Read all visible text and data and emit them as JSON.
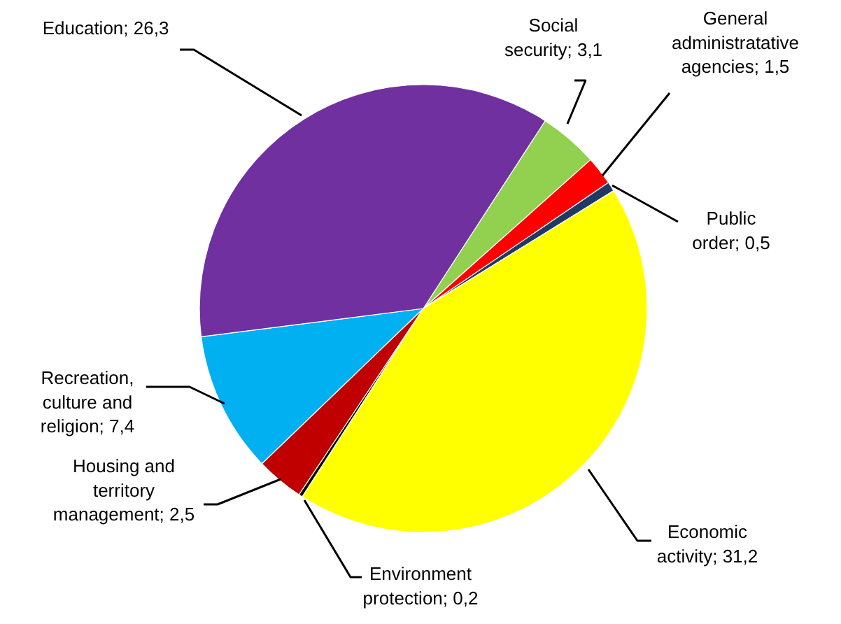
{
  "chart_data": {
    "type": "pie",
    "categories": [
      "Social security",
      "General administratative agencies",
      "Public order",
      "Economic activity",
      "Environment protection",
      "Housing and territory management",
      "Recreation, culture and religion",
      "Education"
    ],
    "values": [
      3.1,
      1.5,
      0.5,
      31.2,
      0.2,
      2.5,
      7.4,
      26.3
    ],
    "value_labels": [
      "3,1",
      "1,5",
      "0,5",
      "31,2",
      "0,2",
      "2,5",
      "7,4",
      "26,3"
    ],
    "colors": [
      "#92d050",
      "#ff0000",
      "#1f3864",
      "#ffff00",
      "#000000",
      "#c00000",
      "#00b0f0",
      "#7030a0"
    ]
  }
}
